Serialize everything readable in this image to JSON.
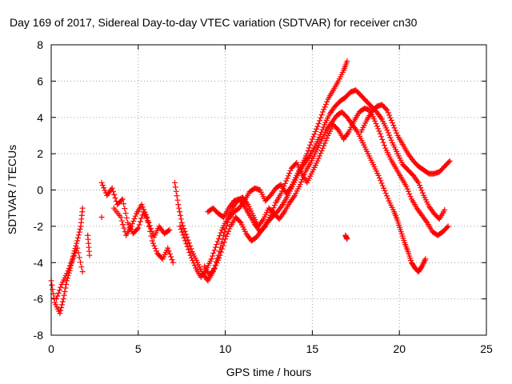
{
  "chart_data": {
    "type": "scatter",
    "title": "Day 169 of 2017, Sidereal Day-to-day VTEC variation (SDTVAR) for receiver cn30",
    "xlabel": "GPS time / hours",
    "ylabel": "SDTVAR / TECUs",
    "xlim": [
      0,
      25
    ],
    "ylim": [
      -8,
      8
    ],
    "xticks": [
      0,
      5,
      10,
      15,
      20,
      25
    ],
    "yticks": [
      -8,
      -6,
      -4,
      -2,
      0,
      2,
      4,
      6,
      8
    ],
    "grid": true,
    "marker": "+",
    "color": "#ff0000",
    "tracks": [
      [
        [
          0.0,
          -5.0
        ],
        [
          0.2,
          -6.2
        ],
        [
          0.5,
          -6.8
        ],
        [
          0.7,
          -6.0
        ],
        [
          0.9,
          -5.0
        ],
        [
          1.1,
          -4.3
        ],
        [
          1.3,
          -3.5
        ],
        [
          1.5,
          -2.8
        ],
        [
          1.7,
          -2.0
        ],
        [
          1.8,
          -1.0
        ]
      ],
      [
        [
          0.3,
          -6.0
        ],
        [
          0.6,
          -5.2
        ],
        [
          0.9,
          -4.6
        ],
        [
          1.2,
          -3.9
        ],
        [
          1.5,
          -3.2
        ],
        [
          1.8,
          -4.5
        ]
      ],
      [
        [
          2.1,
          -2.5
        ],
        [
          2.2,
          -3.6
        ]
      ],
      [
        [
          2.9,
          0.4
        ],
        [
          3.2,
          -0.3
        ],
        [
          3.5,
          0.1
        ],
        [
          3.8,
          -0.8
        ],
        [
          4.1,
          -0.5
        ],
        [
          4.4,
          -1.8
        ],
        [
          4.7,
          -2.4
        ],
        [
          5.0,
          -2.1
        ],
        [
          5.3,
          -1.2
        ],
        [
          5.6,
          -1.8
        ],
        [
          5.9,
          -2.6
        ],
        [
          6.2,
          -2.0
        ],
        [
          6.5,
          -2.4
        ],
        [
          6.8,
          -2.2
        ]
      ],
      [
        [
          3.6,
          -1.0
        ],
        [
          4.0,
          -1.5
        ],
        [
          4.3,
          -2.5
        ],
        [
          4.6,
          -2.0
        ],
        [
          4.9,
          -1.3
        ],
        [
          5.2,
          -0.8
        ],
        [
          5.5,
          -1.5
        ],
        [
          5.8,
          -2.8
        ],
        [
          6.1,
          -3.5
        ],
        [
          6.4,
          -3.8
        ],
        [
          6.7,
          -3.2
        ],
        [
          7.0,
          -4.0
        ]
      ],
      [
        [
          7.1,
          0.4
        ],
        [
          7.3,
          -0.8
        ],
        [
          7.5,
          -1.8
        ],
        [
          7.8,
          -2.6
        ],
        [
          8.1,
          -3.4
        ],
        [
          8.4,
          -4.0
        ],
        [
          8.7,
          -4.6
        ],
        [
          9.0,
          -5.0
        ],
        [
          9.3,
          -4.5
        ],
        [
          9.6,
          -3.6
        ],
        [
          9.9,
          -2.5
        ],
        [
          10.2,
          -1.6
        ],
        [
          10.5,
          -1.2
        ],
        [
          10.8,
          -1.0
        ],
        [
          11.1,
          -0.6
        ],
        [
          11.4,
          -0.1
        ],
        [
          11.7,
          0.1
        ],
        [
          12.0,
          0.0
        ],
        [
          12.3,
          -0.6
        ],
        [
          12.6,
          -0.3
        ],
        [
          12.9,
          0.1
        ],
        [
          13.2,
          0.3
        ],
        [
          13.5,
          -0.2
        ],
        [
          13.8,
          0.2
        ],
        [
          14.1,
          0.8
        ],
        [
          14.4,
          1.4
        ],
        [
          14.7,
          2.0
        ],
        [
          15.0,
          2.8
        ],
        [
          15.3,
          3.5
        ],
        [
          15.6,
          4.3
        ],
        [
          15.9,
          5.0
        ],
        [
          16.2,
          5.5
        ],
        [
          16.5,
          6.0
        ],
        [
          16.8,
          6.6
        ],
        [
          17.0,
          7.1
        ]
      ],
      [
        [
          7.4,
          -2.0
        ],
        [
          7.7,
          -2.8
        ],
        [
          8.0,
          -3.6
        ],
        [
          8.3,
          -4.3
        ],
        [
          8.6,
          -4.8
        ],
        [
          8.9,
          -4.4
        ],
        [
          9.2,
          -3.8
        ],
        [
          9.5,
          -3.0
        ],
        [
          9.8,
          -2.2
        ],
        [
          10.1,
          -1.6
        ],
        [
          10.4,
          -1.0
        ],
        [
          10.7,
          -0.6
        ],
        [
          11.0,
          -0.4
        ],
        [
          11.3,
          -0.8
        ],
        [
          11.6,
          -1.4
        ],
        [
          11.9,
          -2.0
        ],
        [
          12.2,
          -1.6
        ],
        [
          12.5,
          -1.0
        ],
        [
          12.8,
          -1.3
        ],
        [
          13.1,
          -1.6
        ],
        [
          13.4,
          -1.2
        ],
        [
          13.7,
          -0.7
        ],
        [
          14.0,
          -0.3
        ],
        [
          14.3,
          0.3
        ],
        [
          14.6,
          1.0
        ],
        [
          14.9,
          1.5
        ],
        [
          15.2,
          2.1
        ],
        [
          15.5,
          2.7
        ],
        [
          15.8,
          3.3
        ],
        [
          16.1,
          3.7
        ],
        [
          16.4,
          4.1
        ],
        [
          16.7,
          4.3
        ],
        [
          17.0,
          4.0
        ],
        [
          17.3,
          3.6
        ],
        [
          17.6,
          3.2
        ],
        [
          17.9,
          2.6
        ],
        [
          18.2,
          2.0
        ],
        [
          18.5,
          1.4
        ],
        [
          18.8,
          0.8
        ],
        [
          19.1,
          0.1
        ],
        [
          19.4,
          -0.6
        ],
        [
          19.7,
          -1.2
        ],
        [
          19.9,
          -1.7
        ],
        [
          20.1,
          -2.3
        ],
        [
          20.3,
          -2.9
        ],
        [
          20.5,
          -3.4
        ],
        [
          20.7,
          -4.0
        ],
        [
          20.9,
          -4.3
        ],
        [
          21.1,
          -4.5
        ],
        [
          21.3,
          -4.2
        ],
        [
          21.5,
          -3.8
        ]
      ],
      [
        [
          9.0,
          -1.2
        ],
        [
          9.3,
          -1.0
        ],
        [
          9.6,
          -1.3
        ],
        [
          9.9,
          -1.5
        ],
        [
          10.2,
          -1.0
        ],
        [
          10.5,
          -0.6
        ],
        [
          10.8,
          -0.5
        ],
        [
          11.1,
          -0.9
        ],
        [
          11.4,
          -1.4
        ],
        [
          11.7,
          -1.9
        ],
        [
          12.0,
          -2.3
        ],
        [
          12.3,
          -2.0
        ],
        [
          12.6,
          -1.4
        ],
        [
          12.9,
          -0.7
        ],
        [
          13.2,
          -0.2
        ],
        [
          13.5,
          0.5
        ],
        [
          13.8,
          1.2
        ],
        [
          14.1,
          1.5
        ],
        [
          14.4,
          0.9
        ],
        [
          14.7,
          0.4
        ],
        [
          15.0,
          1.0
        ],
        [
          15.3,
          1.6
        ],
        [
          15.6,
          2.3
        ],
        [
          15.9,
          3.0
        ],
        [
          16.2,
          3.6
        ],
        [
          16.5,
          3.3
        ],
        [
          16.8,
          2.8
        ],
        [
          17.1,
          3.2
        ],
        [
          17.4,
          3.8
        ],
        [
          17.7,
          4.3
        ],
        [
          18.0,
          4.5
        ],
        [
          18.3,
          4.4
        ],
        [
          18.6,
          3.8
        ],
        [
          18.9,
          3.1
        ],
        [
          19.2,
          2.3
        ],
        [
          19.5,
          1.7
        ],
        [
          19.8,
          1.2
        ],
        [
          20.1,
          0.7
        ],
        [
          20.4,
          0.2
        ],
        [
          20.7,
          -0.5
        ],
        [
          21.0,
          -1.0
        ],
        [
          21.3,
          -1.4
        ],
        [
          21.6,
          -1.8
        ],
        [
          21.9,
          -2.3
        ],
        [
          22.2,
          -2.5
        ],
        [
          22.5,
          -2.3
        ],
        [
          22.8,
          -2.0
        ]
      ],
      [
        [
          8.8,
          -4.2
        ],
        [
          9.1,
          -4.7
        ],
        [
          9.4,
          -4.3
        ],
        [
          9.7,
          -3.6
        ],
        [
          10.0,
          -2.7
        ],
        [
          10.3,
          -2.0
        ],
        [
          10.6,
          -1.5
        ],
        [
          10.9,
          -1.8
        ],
        [
          11.2,
          -2.4
        ],
        [
          11.5,
          -2.8
        ],
        [
          11.8,
          -2.6
        ],
        [
          12.1,
          -2.2
        ],
        [
          12.4,
          -1.8
        ],
        [
          12.7,
          -1.5
        ],
        [
          13.0,
          -1.2
        ],
        [
          13.3,
          -0.8
        ],
        [
          13.6,
          -0.3
        ],
        [
          13.9,
          0.3
        ],
        [
          14.2,
          0.9
        ],
        [
          14.5,
          1.4
        ],
        [
          14.8,
          1.8
        ],
        [
          15.1,
          2.3
        ],
        [
          15.4,
          2.9
        ],
        [
          15.7,
          3.6
        ],
        [
          16.0,
          4.2
        ],
        [
          16.3,
          4.6
        ],
        [
          16.6,
          4.9
        ],
        [
          16.9,
          5.1
        ],
        [
          17.2,
          5.4
        ],
        [
          17.5,
          5.5
        ],
        [
          17.8,
          5.2
        ],
        [
          18.1,
          4.9
        ],
        [
          18.4,
          4.6
        ],
        [
          18.7,
          4.3
        ],
        [
          19.0,
          3.9
        ],
        [
          19.3,
          3.3
        ],
        [
          19.6,
          2.6
        ],
        [
          19.9,
          2.0
        ],
        [
          20.2,
          1.4
        ],
        [
          20.5,
          1.1
        ],
        [
          20.8,
          0.8
        ],
        [
          21.1,
          0.4
        ],
        [
          21.4,
          -0.3
        ],
        [
          21.7,
          -0.9
        ],
        [
          22.0,
          -1.3
        ],
        [
          22.3,
          -1.6
        ],
        [
          22.6,
          -1.1
        ]
      ],
      [
        [
          17.8,
          3.2
        ],
        [
          18.1,
          3.8
        ],
        [
          18.4,
          4.3
        ],
        [
          18.7,
          4.6
        ],
        [
          19.0,
          4.7
        ],
        [
          19.3,
          4.4
        ],
        [
          19.6,
          3.7
        ],
        [
          19.9,
          3.0
        ],
        [
          20.2,
          2.5
        ],
        [
          20.5,
          2.0
        ],
        [
          20.8,
          1.6
        ],
        [
          21.1,
          1.3
        ],
        [
          21.4,
          1.1
        ],
        [
          21.7,
          0.9
        ],
        [
          22.0,
          0.9
        ],
        [
          22.3,
          1.0
        ],
        [
          22.6,
          1.3
        ],
        [
          22.9,
          1.6
        ]
      ],
      [
        [
          16.9,
          -2.5
        ],
        [
          17.0,
          -2.7
        ]
      ],
      [
        [
          2.9,
          -1.5
        ]
      ]
    ]
  }
}
